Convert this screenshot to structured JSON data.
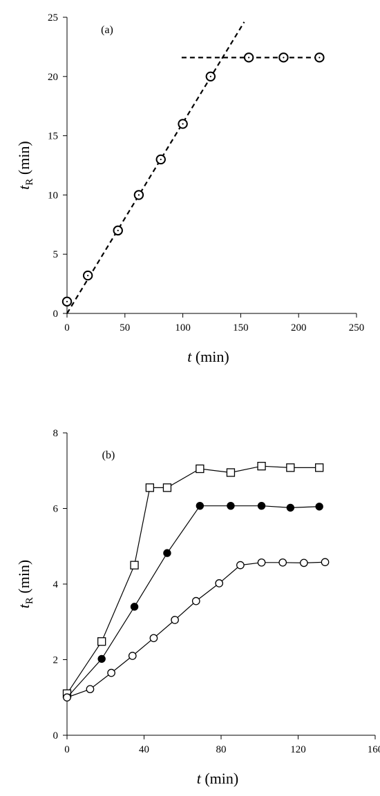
{
  "chart_data": [
    {
      "type": "scatter",
      "panel_label": "(a)",
      "ylabel": {
        "main": "t",
        "sub": "R",
        "unit": " (min)"
      },
      "xlabel": {
        "main": "t",
        "unit": " (min)"
      },
      "xlim": [
        0,
        250
      ],
      "ylim": [
        0,
        25
      ],
      "xticks": [
        0,
        50,
        100,
        150,
        200,
        250
      ],
      "yticks": [
        0,
        5,
        10,
        15,
        20,
        25
      ],
      "grid": false,
      "series": [
        {
          "marker": "open-circle",
          "x": [
            0,
            18,
            44,
            62,
            81,
            100,
            124,
            157,
            187,
            218
          ],
          "y": [
            1.0,
            3.2,
            7.0,
            10.0,
            13.0,
            16.0,
            20.0,
            21.6,
            21.6,
            21.6
          ]
        }
      ],
      "fit_lines": [
        {
          "style": "dashed",
          "x": [
            0,
            153
          ],
          "y": [
            0,
            24.6
          ]
        },
        {
          "style": "dashed",
          "x": [
            99,
            222
          ],
          "y": [
            21.6,
            21.6
          ]
        }
      ]
    },
    {
      "type": "line",
      "panel_label": "(b)",
      "ylabel": {
        "main": "t",
        "sub": "R",
        "unit": " (min)"
      },
      "xlabel": {
        "main": "t",
        "unit": " (min)"
      },
      "xlim": [
        0,
        160
      ],
      "ylim": [
        0,
        8
      ],
      "xticks": [
        0,
        40,
        80,
        120,
        160
      ],
      "yticks": [
        0,
        2,
        4,
        6,
        8
      ],
      "grid": false,
      "series": [
        {
          "marker": "open-square",
          "x": [
            0,
            18,
            35,
            43,
            52,
            69,
            85,
            101,
            116,
            131
          ],
          "y": [
            1.1,
            2.48,
            4.5,
            6.55,
            6.55,
            7.05,
            6.95,
            7.12,
            7.08,
            7.08
          ]
        },
        {
          "marker": "filled-circle",
          "x": [
            0,
            18,
            35,
            52,
            69,
            85,
            101,
            116,
            131
          ],
          "y": [
            1.0,
            2.02,
            3.4,
            4.82,
            6.07,
            6.07,
            6.07,
            6.02,
            6.05
          ]
        },
        {
          "marker": "open-circle",
          "x": [
            0,
            12,
            23,
            34,
            45,
            56,
            67,
            79,
            90,
            101,
            112,
            123,
            134
          ],
          "y": [
            1.0,
            1.22,
            1.65,
            2.1,
            2.57,
            3.05,
            3.55,
            4.02,
            4.5,
            4.57,
            4.57,
            4.56,
            4.58
          ]
        }
      ]
    }
  ]
}
